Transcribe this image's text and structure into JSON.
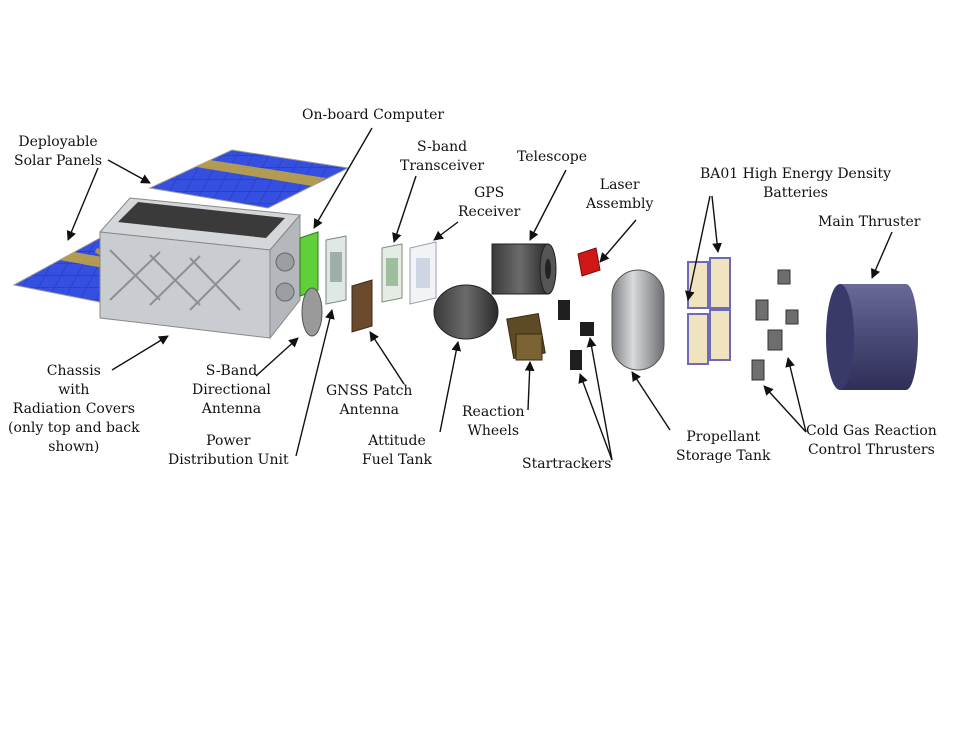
{
  "labels": {
    "solar_panels": [
      "Deployable",
      "Solar Panels"
    ],
    "obc": [
      "On-board Computer"
    ],
    "sband_trx": [
      "S-band",
      "Transceiver"
    ],
    "gps": [
      "GPS",
      "Receiver"
    ],
    "telescope": [
      "Telescope"
    ],
    "laser": [
      "Laser",
      "Assembly"
    ],
    "batteries": [
      "BA01 High Energy Density",
      "Batteries"
    ],
    "main_thruster": [
      "Main Thruster"
    ],
    "chassis": [
      "Chassis",
      "with",
      "Radiation Covers",
      "(only top and back",
      "shown)"
    ],
    "sband_antenna": [
      "S-Band",
      "Directional",
      "Antenna"
    ],
    "pdu": [
      "Power",
      "Distribution Unit"
    ],
    "gnss": [
      "GNSS Patch",
      "Antenna"
    ],
    "attitude_tank": [
      "Attitude",
      "Fuel Tank"
    ],
    "reaction_wheels": [
      "Reaction",
      "Wheels"
    ],
    "startrackers": [
      "Startrackers"
    ],
    "propellant_tank": [
      "Propellant",
      "Storage Tank"
    ],
    "cold_gas": [
      "Cold Gas Reaction",
      "Control Thrusters"
    ]
  },
  "colors": {
    "solar_cell": "#2b3fc8",
    "solar_strip": "#c8a83a",
    "chassis": "#c9ccd0",
    "pcb_green": "#5fcf3a",
    "laser_red": "#d01818",
    "thruster": "#4a4a78",
    "tank": "#a6a8ab"
  }
}
